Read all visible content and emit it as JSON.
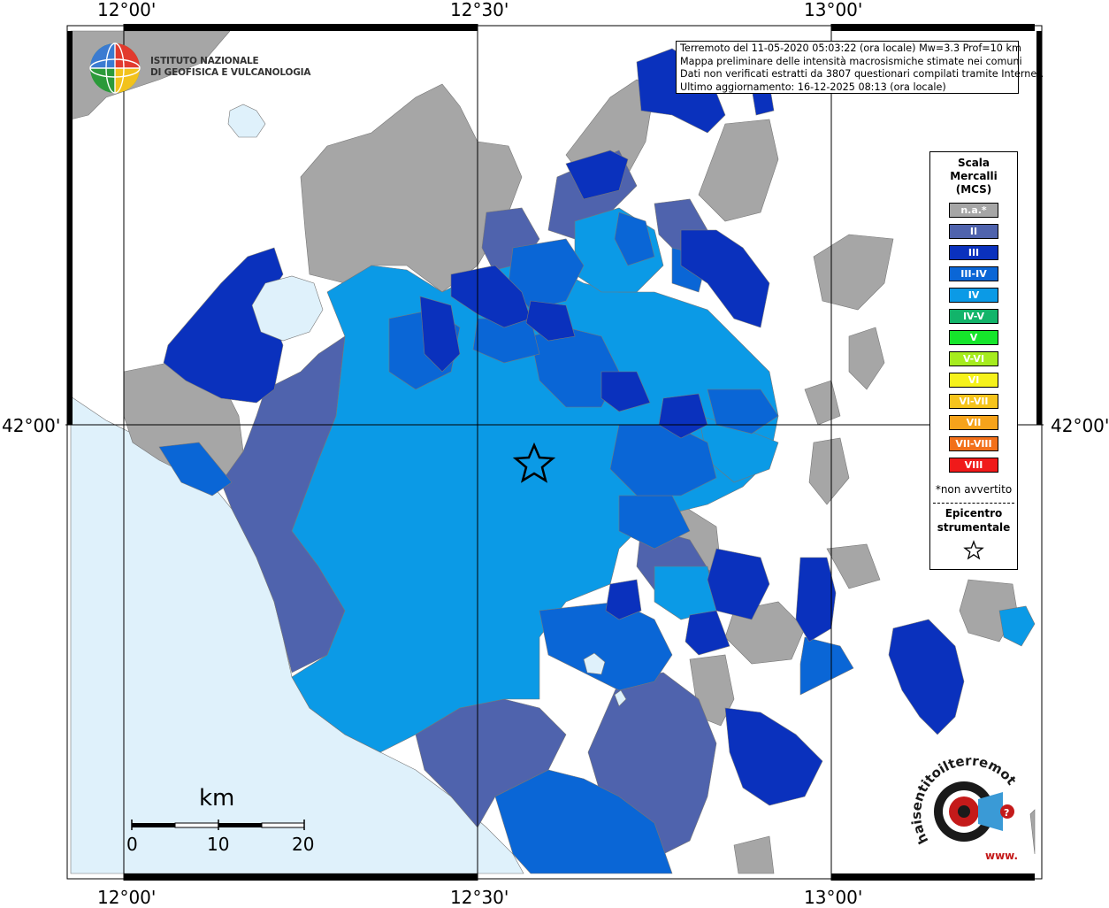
{
  "coords": {
    "lon_labels": [
      "12°00'",
      "12°30'",
      "13°00'"
    ],
    "lat_labels": [
      "42°00'"
    ]
  },
  "logo": {
    "line1": "ISTITUTO NAZIONALE",
    "line2": "DI GEOFISICA E VULCANOLOGIA"
  },
  "info": {
    "line1": "Terremoto del 11-05-2020 05:03:22 (ora locale) Mw=3.3 Prof=10 km",
    "line2": "Mappa preliminare delle intensità macrosismiche stimate nei comuni",
    "line3": "Dati non verificati estratti da 3807 questionari compilati tramite Internet.",
    "line4": "Ultimo aggiornamento: 16-12-2025 08:13 (ora locale)"
  },
  "legend": {
    "title1": "Scala",
    "title2": "Mercalli",
    "title3": "(MCS)",
    "items": [
      {
        "label": "n.a.*",
        "color": "#a6a6a6"
      },
      {
        "label": "II",
        "color": "#4f63ad"
      },
      {
        "label": "III",
        "color": "#0a31bd"
      },
      {
        "label": "III-IV",
        "color": "#0a66d6"
      },
      {
        "label": "IV",
        "color": "#0b9ae6"
      },
      {
        "label": "IV-V",
        "color": "#12b46a"
      },
      {
        "label": "V",
        "color": "#16e52b"
      },
      {
        "label": "V-VI",
        "color": "#a6ec1e"
      },
      {
        "label": "VI",
        "color": "#f6f21b"
      },
      {
        "label": "VI-VII",
        "color": "#f6c41c"
      },
      {
        "label": "VII",
        "color": "#f6a31b"
      },
      {
        "label": "VII-VIII",
        "color": "#f2701a"
      },
      {
        "label": "VIII",
        "color": "#f01a1a"
      }
    ],
    "note": "*non avvertito",
    "epicenter1": "Epicentro",
    "epicenter2": "strumentale"
  },
  "scale": {
    "unit": "km",
    "labels": [
      "0",
      "10",
      "20"
    ]
  },
  "hst": {
    "text": "haisentitoilterremoto.it",
    "www": "www."
  },
  "colors": {
    "sea": "#dff1fb",
    "na": "#a6a6a6",
    "ii": "#4f63ad",
    "iii": "#0a31bd",
    "iii_iv": "#0a66d6",
    "iv": "#0b9ae6"
  }
}
